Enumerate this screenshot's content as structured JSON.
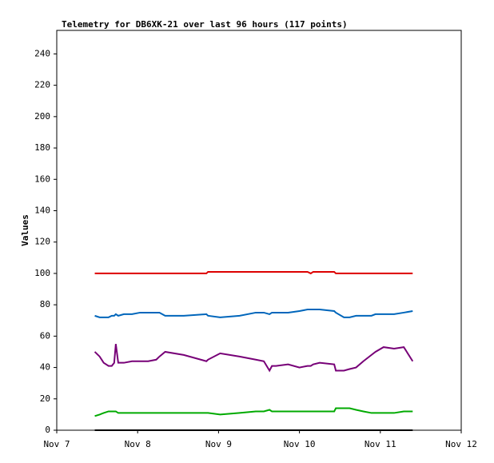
{
  "chart_data": {
    "type": "line",
    "title": "Telemetry for DB6XK-21 over last 96 hours (117 points)",
    "y_label": "Values",
    "x": [
      7.47,
      7.53,
      7.58,
      7.64,
      7.68,
      7.71,
      7.73,
      7.76,
      7.83,
      7.93,
      8.03,
      8.13,
      8.23,
      8.27,
      8.34,
      8.57,
      8.85,
      8.87,
      9.02,
      9.26,
      9.46,
      9.56,
      9.63,
      9.66,
      9.71,
      9.86,
      10.0,
      10.1,
      10.14,
      10.17,
      10.25,
      10.43,
      10.45,
      10.55,
      10.62,
      10.7,
      10.79,
      10.89,
      10.94,
      11.04,
      11.17,
      11.29,
      11.4
    ],
    "series": [
      {
        "color": "#dd0000",
        "values": [
          100,
          100,
          100,
          100,
          100,
          100,
          100,
          100,
          100,
          100,
          100,
          100,
          100,
          100,
          100,
          100,
          100,
          101,
          101,
          101,
          101,
          101,
          101,
          101,
          101,
          101,
          101,
          101,
          100,
          101,
          101,
          101,
          100,
          100,
          100,
          100,
          100,
          100,
          100,
          100,
          100,
          100,
          100
        ]
      },
      {
        "color": "#0066bb",
        "values": [
          73,
          72,
          72,
          72,
          73,
          73,
          74,
          73,
          74,
          74,
          75,
          75,
          75,
          75,
          73,
          73,
          74,
          73,
          72,
          73,
          75,
          75,
          74,
          75,
          75,
          75,
          76,
          77,
          77,
          77,
          77,
          76,
          75,
          72,
          72,
          73,
          73,
          73,
          74,
          74,
          74,
          75,
          76
        ]
      },
      {
        "color": "#770077",
        "values": [
          50,
          47,
          43,
          41,
          41,
          43,
          55,
          43,
          43,
          44,
          44,
          44,
          45,
          47,
          50,
          48,
          44,
          45,
          49,
          47,
          45,
          44,
          38,
          41,
          41,
          42,
          40,
          41,
          41,
          42,
          43,
          42,
          38,
          38,
          39,
          40,
          44,
          48,
          50,
          53,
          52,
          53,
          44
        ]
      },
      {
        "color": "#00aa00",
        "values": [
          9,
          10,
          11,
          12,
          12,
          12,
          12,
          11,
          11,
          11,
          11,
          11,
          11,
          11,
          11,
          11,
          11,
          11,
          10,
          11,
          12,
          12,
          13,
          12,
          12,
          12,
          12,
          12,
          12,
          12,
          12,
          12,
          14,
          14,
          14,
          13,
          12,
          11,
          11,
          11,
          11,
          12,
          12
        ]
      },
      {
        "color": "#000000",
        "values": [
          0,
          0,
          0,
          0,
          0,
          0,
          0,
          0,
          0,
          0,
          0,
          0,
          0,
          0,
          0,
          0,
          0,
          0,
          0,
          0,
          0,
          0,
          0,
          0,
          0,
          0,
          0,
          0,
          0,
          0,
          0,
          0,
          0,
          0,
          0,
          0,
          0,
          0,
          0,
          0,
          0,
          0,
          0
        ]
      }
    ],
    "ylim": [
      0,
      255
    ],
    "yticks": [
      0,
      20,
      40,
      60,
      80,
      100,
      120,
      140,
      160,
      180,
      200,
      220,
      240
    ],
    "xlim": [
      7,
      12
    ],
    "xticks": [
      {
        "value": 7,
        "label": "Nov 7"
      },
      {
        "value": 8,
        "label": "Nov 8"
      },
      {
        "value": 9,
        "label": "Nov 9"
      },
      {
        "value": 10,
        "label": "Nov 10"
      },
      {
        "value": 11,
        "label": "Nov 11"
      },
      {
        "value": 12,
        "label": "Nov 12"
      }
    ],
    "grid": false
  }
}
